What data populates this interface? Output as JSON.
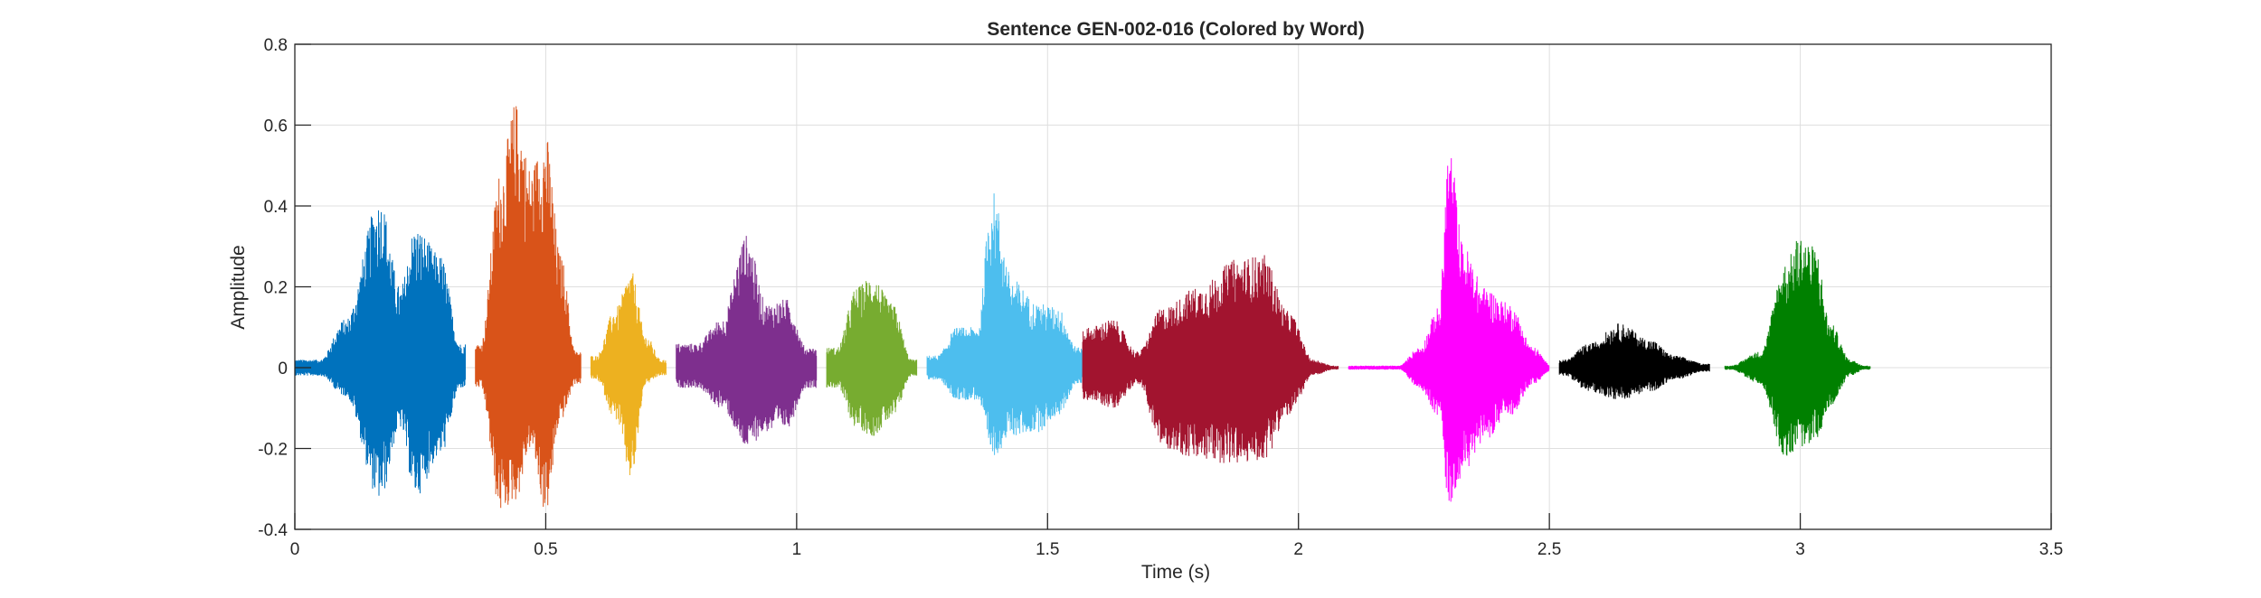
{
  "chart_data": {
    "type": "line",
    "title": "Sentence GEN-002-016 (Colored by Word)",
    "xlabel": "Time (s)",
    "ylabel": "Amplitude",
    "xlim": [
      0,
      3.5
    ],
    "ylim": [
      -0.4,
      0.8
    ],
    "grid": true,
    "x_ticks": [
      0,
      0.5,
      1,
      1.5,
      2,
      2.5,
      3,
      3.5
    ],
    "y_ticks": [
      -0.4,
      -0.2,
      0,
      0.2,
      0.4,
      0.6,
      0.8
    ],
    "x_tick_labels": [
      "0",
      "0.5",
      "1",
      "1.5",
      "2",
      "2.5",
      "3",
      "3.5"
    ],
    "y_tick_labels": [
      "-0.4",
      "-0.2",
      "0",
      "0.2",
      "0.4",
      "0.6",
      "0.8"
    ],
    "series": [
      {
        "color": "#0072BD",
        "t_start": 0.0,
        "t_end": 0.34,
        "peaks": [
          [
            0.05,
            0.02,
            -0.02
          ],
          [
            0.1,
            0.12,
            -0.07
          ],
          [
            0.17,
            0.42,
            -0.33
          ],
          [
            0.21,
            0.2,
            -0.15
          ],
          [
            0.24,
            0.35,
            -0.32
          ],
          [
            0.29,
            0.28,
            -0.22
          ],
          [
            0.33,
            0.06,
            -0.05
          ]
        ]
      },
      {
        "color": "#D95319",
        "t_start": 0.36,
        "t_end": 0.57,
        "peaks": [
          [
            0.37,
            0.06,
            -0.05
          ],
          [
            0.41,
            0.49,
            -0.36
          ],
          [
            0.44,
            0.66,
            -0.33
          ],
          [
            0.47,
            0.5,
            -0.2
          ],
          [
            0.5,
            0.58,
            -0.36
          ],
          [
            0.53,
            0.28,
            -0.13
          ],
          [
            0.56,
            0.04,
            -0.04
          ]
        ]
      },
      {
        "color": "#EDB120",
        "t_start": 0.59,
        "t_end": 0.74,
        "peaks": [
          [
            0.6,
            0.03,
            -0.03
          ],
          [
            0.64,
            0.15,
            -0.13
          ],
          [
            0.67,
            0.24,
            -0.28
          ],
          [
            0.7,
            0.08,
            -0.04
          ],
          [
            0.73,
            0.02,
            -0.02
          ]
        ]
      },
      {
        "color": "#7E2F8E",
        "t_start": 0.76,
        "t_end": 1.04,
        "peaks": [
          [
            0.8,
            0.06,
            -0.05
          ],
          [
            0.85,
            0.12,
            -0.1
          ],
          [
            0.9,
            0.33,
            -0.2
          ],
          [
            0.94,
            0.16,
            -0.16
          ],
          [
            0.98,
            0.17,
            -0.15
          ],
          [
            1.02,
            0.05,
            -0.05
          ]
        ]
      },
      {
        "color": "#77AC30",
        "t_start": 1.06,
        "t_end": 1.24,
        "peaks": [
          [
            1.08,
            0.05,
            -0.05
          ],
          [
            1.12,
            0.2,
            -0.15
          ],
          [
            1.15,
            0.23,
            -0.17
          ],
          [
            1.19,
            0.16,
            -0.13
          ],
          [
            1.23,
            0.02,
            -0.02
          ]
        ]
      },
      {
        "color": "#4DBEEE",
        "t_start": 1.26,
        "t_end": 1.57,
        "peaks": [
          [
            1.28,
            0.03,
            -0.03
          ],
          [
            1.32,
            0.1,
            -0.08
          ],
          [
            1.36,
            0.1,
            -0.08
          ],
          [
            1.39,
            0.44,
            -0.22
          ],
          [
            1.43,
            0.22,
            -0.17
          ],
          [
            1.48,
            0.16,
            -0.16
          ],
          [
            1.52,
            0.15,
            -0.12
          ],
          [
            1.56,
            0.05,
            -0.04
          ]
        ]
      },
      {
        "color": "#A2142F",
        "t_start": 1.57,
        "t_end": 2.08,
        "peaks": [
          [
            1.58,
            0.1,
            -0.08
          ],
          [
            1.63,
            0.12,
            -0.1
          ],
          [
            1.68,
            0.04,
            -0.04
          ],
          [
            1.73,
            0.15,
            -0.2
          ],
          [
            1.8,
            0.2,
            -0.23
          ],
          [
            1.88,
            0.27,
            -0.24
          ],
          [
            1.93,
            0.28,
            -0.23
          ],
          [
            1.98,
            0.14,
            -0.12
          ],
          [
            2.03,
            0.02,
            -0.02
          ],
          [
            2.07,
            0.005,
            -0.005
          ]
        ]
      },
      {
        "color": "#FF00FF",
        "t_start": 2.1,
        "t_end": 2.5,
        "peaks": [
          [
            2.12,
            0.005,
            -0.005
          ],
          [
            2.2,
            0.005,
            -0.005
          ],
          [
            2.24,
            0.05,
            -0.05
          ],
          [
            2.28,
            0.15,
            -0.12
          ],
          [
            2.3,
            0.55,
            -0.34
          ],
          [
            2.33,
            0.3,
            -0.26
          ],
          [
            2.37,
            0.2,
            -0.18
          ],
          [
            2.42,
            0.16,
            -0.12
          ],
          [
            2.47,
            0.05,
            -0.04
          ],
          [
            2.5,
            0.01,
            -0.01
          ]
        ]
      },
      {
        "color": "#000000",
        "t_start": 2.52,
        "t_end": 2.82,
        "peaks": [
          [
            2.53,
            0.02,
            -0.02
          ],
          [
            2.58,
            0.06,
            -0.06
          ],
          [
            2.64,
            0.11,
            -0.08
          ],
          [
            2.7,
            0.07,
            -0.06
          ],
          [
            2.75,
            0.03,
            -0.03
          ],
          [
            2.81,
            0.01,
            -0.01
          ]
        ]
      },
      {
        "color": "#008000",
        "t_start": 2.85,
        "t_end": 3.14,
        "peaks": [
          [
            2.86,
            0.005,
            -0.005
          ],
          [
            2.92,
            0.04,
            -0.04
          ],
          [
            2.97,
            0.26,
            -0.22
          ],
          [
            3.0,
            0.33,
            -0.2
          ],
          [
            3.03,
            0.3,
            -0.18
          ],
          [
            3.06,
            0.11,
            -0.1
          ],
          [
            3.1,
            0.02,
            -0.02
          ],
          [
            3.13,
            0.005,
            -0.005
          ]
        ]
      }
    ]
  }
}
